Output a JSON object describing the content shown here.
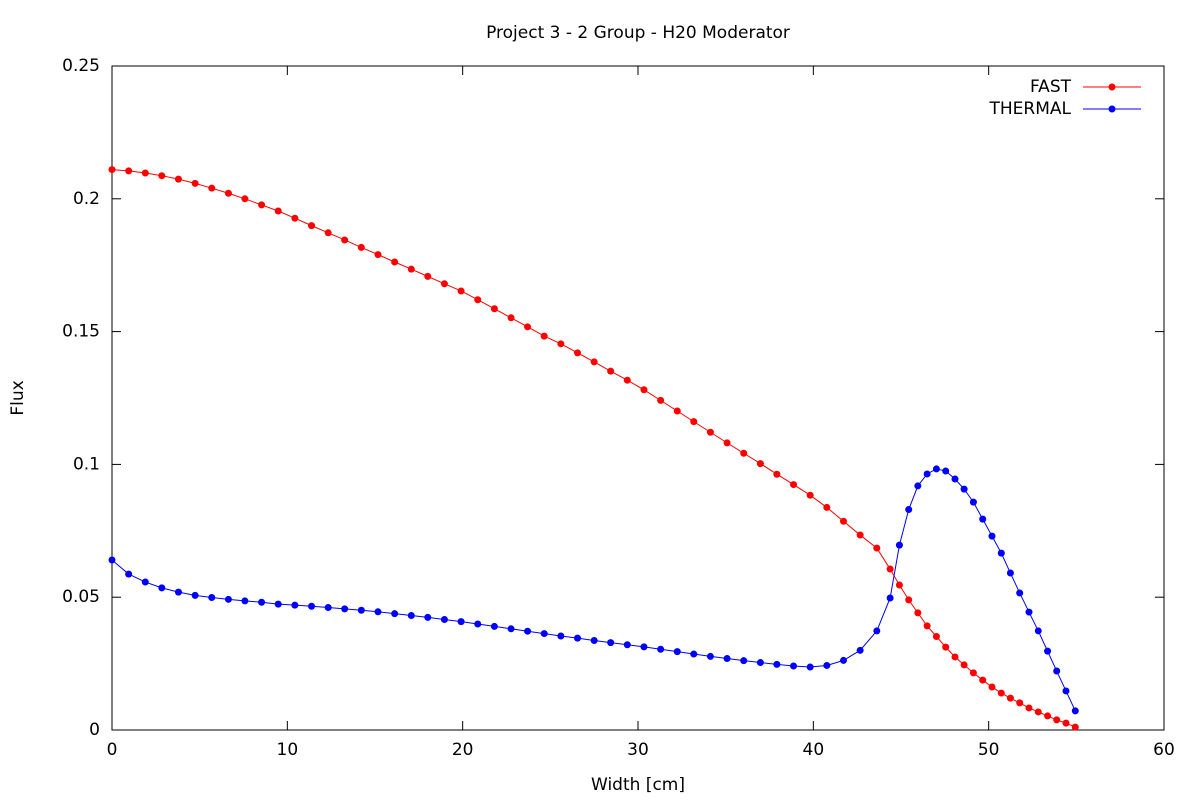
{
  "chart_data": {
    "type": "line",
    "title": "Project 3 - 2 Group - H20 Moderator",
    "x_label": "Width [cm]",
    "y_label": "Flux",
    "x": [
      0,
      0.95,
      1.9,
      2.84,
      3.79,
      4.74,
      5.69,
      6.64,
      7.58,
      8.53,
      9.48,
      10.43,
      11.38,
      12.33,
      13.27,
      14.22,
      15.17,
      16.12,
      17.07,
      18.01,
      18.96,
      19.91,
      20.86,
      21.81,
      22.76,
      23.7,
      24.65,
      25.6,
      26.55,
      27.5,
      28.44,
      29.39,
      30.34,
      31.29,
      32.24,
      33.18,
      34.13,
      35.08,
      36.03,
      36.98,
      37.92,
      38.87,
      39.82,
      40.77,
      41.72,
      42.67,
      43.62,
      44.38,
      44.91,
      45.44,
      45.96,
      46.49,
      47.02,
      47.55,
      48.08,
      48.6,
      49.13,
      49.66,
      50.19,
      50.72,
      51.24,
      51.77,
      52.3,
      52.83,
      53.36,
      53.88,
      54.41,
      54.94
    ],
    "series": [
      {
        "name": "FAST",
        "color": "#ff0000",
        "values": [
          0.211,
          0.2105,
          0.2097,
          0.2087,
          0.2074,
          0.2058,
          0.204,
          0.2021,
          0.2,
          0.1977,
          0.1954,
          0.1927,
          0.1899,
          0.1872,
          0.1845,
          0.1817,
          0.179,
          0.1762,
          0.1735,
          0.1708,
          0.168,
          0.1653,
          0.162,
          0.1586,
          0.1552,
          0.1518,
          0.1483,
          0.1454,
          0.142,
          0.1386,
          0.1351,
          0.1317,
          0.1281,
          0.1241,
          0.1201,
          0.1161,
          0.1121,
          0.1081,
          0.1042,
          0.1003,
          0.0963,
          0.0924,
          0.0884,
          0.0838,
          0.0786,
          0.0734,
          0.0685,
          0.0606,
          0.0546,
          0.049,
          0.0441,
          0.0392,
          0.0352,
          0.0312,
          0.0275,
          0.0245,
          0.0215,
          0.0188,
          0.0162,
          0.0139,
          0.012,
          0.0102,
          0.0083,
          0.0068,
          0.0053,
          0.0038,
          0.0026,
          0.0011
        ]
      },
      {
        "name": "THERMAL",
        "color": "#0000ff",
        "values": [
          0.064,
          0.0587,
          0.0557,
          0.0535,
          0.0519,
          0.0507,
          0.0499,
          0.0492,
          0.0486,
          0.0481,
          0.0474,
          0.047,
          0.0466,
          0.0461,
          0.0456,
          0.0451,
          0.0445,
          0.0438,
          0.0431,
          0.0424,
          0.0416,
          0.0408,
          0.0399,
          0.039,
          0.0381,
          0.0372,
          0.0363,
          0.0354,
          0.0346,
          0.0337,
          0.0329,
          0.0321,
          0.0313,
          0.0304,
          0.0295,
          0.0286,
          0.0277,
          0.0269,
          0.0261,
          0.0254,
          0.0247,
          0.0241,
          0.0237,
          0.0243,
          0.0262,
          0.03,
          0.0373,
          0.0497,
          0.0696,
          0.083,
          0.0919,
          0.0964,
          0.0983,
          0.0975,
          0.0945,
          0.0907,
          0.0858,
          0.0794,
          0.073,
          0.0666,
          0.0591,
          0.0516,
          0.0444,
          0.0373,
          0.0297,
          0.0222,
          0.0147,
          0.0072
        ]
      }
    ],
    "xlim": [
      0,
      60
    ],
    "xticks": [
      0,
      10,
      20,
      30,
      40,
      50,
      60
    ],
    "ylim": [
      0,
      0.25
    ],
    "yticks": [
      0,
      0.05,
      0.1,
      0.15,
      0.2,
      0.25
    ],
    "legend": "top-right",
    "markers": true
  }
}
